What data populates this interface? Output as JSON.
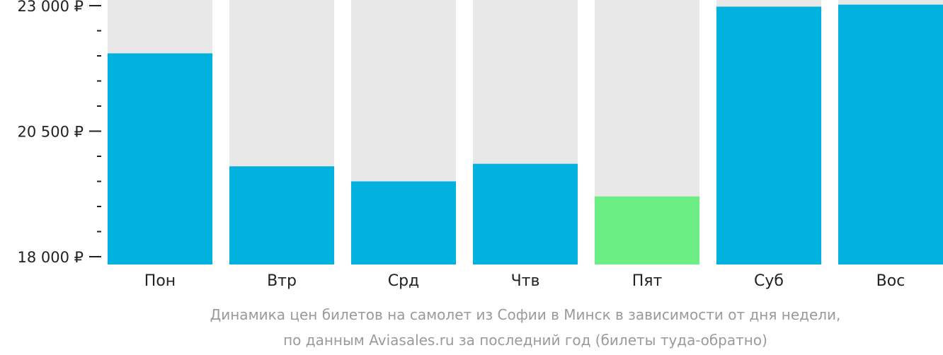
{
  "chart_data": {
    "type": "bar",
    "categories": [
      "Пон",
      "Втр",
      "Срд",
      "Чтв",
      "Пят",
      "Суб",
      "Вос"
    ],
    "values": [
      22050,
      19800,
      19500,
      19850,
      19200,
      22980,
      23020
    ],
    "ylim": [
      18000,
      23000
    ],
    "yticks": [
      {
        "value": 18000,
        "label": "18 000 ₽"
      },
      {
        "value": 20500,
        "label": "20 500 ₽"
      },
      {
        "value": 23000,
        "label": "23 000 ₽"
      }
    ],
    "minor_tick_step": 500,
    "grid": false,
    "colors": {
      "bar": "#00b0dd",
      "highlight": "#6bef85",
      "background_bar": "#e8e8e8",
      "axis": "#222222"
    },
    "highlight_index": 4
  },
  "caption": {
    "line1": "Динамика цен билетов на самолет из Софии в Минск в зависимости от дня недели,",
    "line2": "по данным Aviasales.ru за последний год (билеты туда-обратно)"
  }
}
